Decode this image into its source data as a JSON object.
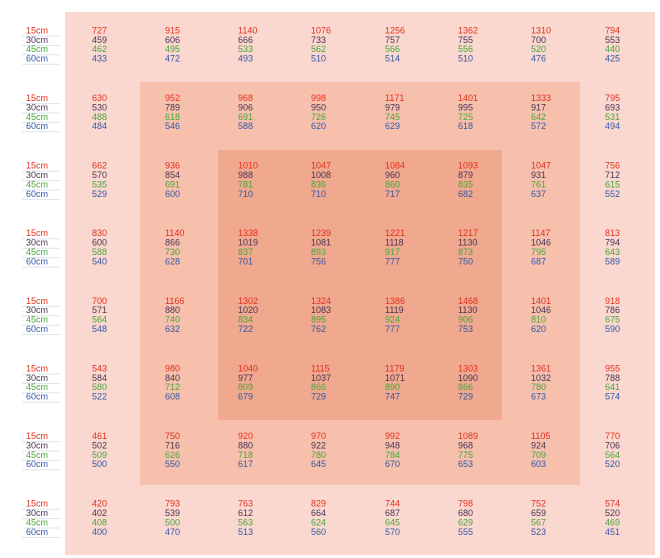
{
  "depths": [
    "15cm",
    "30cm",
    "45cm",
    "60cm"
  ],
  "rows": [
    [
      [
        727,
        915,
        1140,
        1076,
        1256,
        1362,
        1310,
        794
      ],
      [
        459,
        606,
        666,
        733,
        757,
        755,
        700,
        553
      ],
      [
        462,
        495,
        533,
        562,
        566,
        556,
        520,
        440
      ],
      [
        433,
        472,
        493,
        510,
        514,
        510,
        476,
        425
      ]
    ],
    [
      [
        630,
        952,
        968,
        998,
        1171,
        1401,
        1333,
        795
      ],
      [
        530,
        789,
        906,
        950,
        979,
        995,
        917,
        693
      ],
      [
        488,
        618,
        691,
        726,
        745,
        725,
        642,
        531
      ],
      [
        484,
        546,
        588,
        620,
        629,
        618,
        572,
        494
      ]
    ],
    [
      [
        662,
        936,
        1010,
        1047,
        1084,
        1093,
        1047,
        756
      ],
      [
        570,
        854,
        988,
        1008,
        960,
        879,
        931,
        712
      ],
      [
        535,
        691,
        781,
        836,
        860,
        835,
        761,
        615
      ],
      [
        529,
        600,
        710,
        710,
        717,
        682,
        637,
        552
      ]
    ],
    [
      [
        830,
        1140,
        1338,
        1239,
        1221,
        1217,
        1147,
        813
      ],
      [
        600,
        866,
        1019,
        1081,
        1118,
        1130,
        1046,
        794
      ],
      [
        588,
        730,
        837,
        893,
        917,
        873,
        795,
        643
      ],
      [
        540,
        628,
        701,
        756,
        777,
        750,
        687,
        589
      ]
    ],
    [
      [
        700,
        1166,
        1302,
        1324,
        1386,
        1468,
        1401,
        918
      ],
      [
        571,
        880,
        1020,
        1083,
        1119,
        1130,
        1046,
        786
      ],
      [
        564,
        740,
        834,
        895,
        924,
        906,
        810,
        675
      ],
      [
        548,
        632,
        722,
        762,
        777,
        753,
        620,
        590
      ]
    ],
    [
      [
        543,
        980,
        1040,
        1115,
        1179,
        1303,
        1361,
        955
      ],
      [
        584,
        840,
        977,
        1037,
        1071,
        1090,
        1032,
        788
      ],
      [
        580,
        712,
        809,
        866,
        890,
        866,
        780,
        641
      ],
      [
        522,
        608,
        679,
        729,
        747,
        729,
        673,
        574
      ]
    ],
    [
      [
        461,
        750,
        920,
        970,
        992,
        1089,
        1105,
        770
      ],
      [
        502,
        716,
        880,
        922,
        948,
        968,
        924,
        706
      ],
      [
        509,
        626,
        718,
        780,
        784,
        775,
        709,
        564
      ],
      [
        500,
        550,
        617,
        645,
        670,
        653,
        603,
        520
      ]
    ],
    [
      [
        420,
        793,
        763,
        829,
        744,
        798,
        752,
        574
      ],
      [
        402,
        539,
        612,
        664,
        687,
        680,
        659,
        520
      ],
      [
        408,
        500,
        563,
        624,
        645,
        629,
        567,
        469
      ],
      [
        400,
        470,
        513,
        560,
        570,
        555,
        523,
        451
      ]
    ]
  ]
}
